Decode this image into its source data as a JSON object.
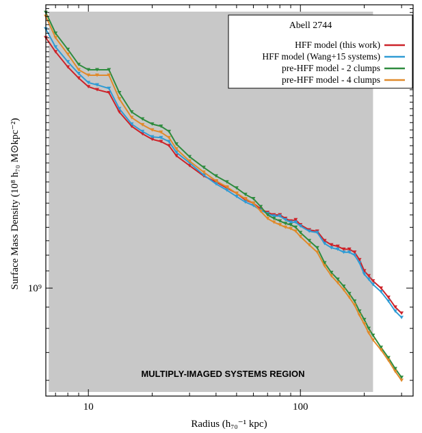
{
  "chart_data": {
    "type": "line",
    "title": "",
    "xlabel": "Radius (h₇₀⁻¹ kpc)",
    "ylabel": "Surface Mass Density (10⁸ h₇₀ M⊙kpc⁻²)",
    "xscale": "log",
    "yscale": "log",
    "xlim": [
      6.3,
      340
    ],
    "ylim": [
      0.55,
      4.8
    ],
    "x_tick_labels": [
      {
        "value": 10,
        "label": "10"
      },
      {
        "value": 100,
        "label": "100"
      }
    ],
    "y_tick_labels": [
      {
        "value": 1.0,
        "label": "10⁹"
      }
    ],
    "legend": {
      "title": "Abell 2744",
      "placement": "top-right"
    },
    "shaded_region": {
      "label": "MULTIPLY-IMAGED SYSTEMS REGION",
      "x_range": [
        6.5,
        220
      ],
      "color": "#c8c8c8"
    },
    "series": [
      {
        "name": "HFF model (this work)",
        "color": "#cc2229",
        "x": [
          6.3,
          7,
          8,
          9,
          10,
          11,
          12.5,
          14,
          16,
          18,
          20,
          22,
          24,
          26,
          30,
          35,
          40,
          45,
          50,
          55,
          60,
          65,
          70,
          75,
          80,
          85,
          90,
          95,
          100,
          110,
          120,
          130,
          140,
          150,
          160,
          170,
          180,
          190,
          200,
          210,
          220,
          240,
          260,
          280,
          300
        ],
        "y": [
          4.0,
          3.7,
          3.4,
          3.2,
          3.05,
          3.0,
          2.95,
          2.65,
          2.45,
          2.35,
          2.28,
          2.25,
          2.2,
          2.08,
          1.97,
          1.86,
          1.8,
          1.74,
          1.69,
          1.63,
          1.6,
          1.55,
          1.52,
          1.5,
          1.5,
          1.47,
          1.45,
          1.46,
          1.42,
          1.38,
          1.37,
          1.3,
          1.27,
          1.26,
          1.24,
          1.24,
          1.22,
          1.17,
          1.1,
          1.07,
          1.04,
          1.0,
          0.95,
          0.9,
          0.87
        ]
      },
      {
        "name": "HFF model (Wang+15 systems)",
        "color": "#2f9bd4",
        "x": [
          6.3,
          7,
          8,
          9,
          10,
          11,
          12.5,
          14,
          16,
          18,
          20,
          22,
          24,
          26,
          30,
          35,
          40,
          45,
          50,
          55,
          60,
          65,
          70,
          75,
          80,
          85,
          90,
          95,
          100,
          110,
          120,
          130,
          140,
          150,
          160,
          170,
          180,
          190,
          200,
          210,
          220,
          240,
          260,
          280,
          300
        ],
        "y": [
          4.2,
          3.8,
          3.5,
          3.28,
          3.12,
          3.08,
          3.02,
          2.7,
          2.48,
          2.38,
          2.31,
          2.3,
          2.25,
          2.12,
          2.0,
          1.87,
          1.78,
          1.72,
          1.66,
          1.61,
          1.58,
          1.54,
          1.51,
          1.49,
          1.49,
          1.46,
          1.44,
          1.44,
          1.41,
          1.37,
          1.36,
          1.28,
          1.25,
          1.24,
          1.22,
          1.22,
          1.2,
          1.15,
          1.08,
          1.05,
          1.02,
          0.98,
          0.93,
          0.88,
          0.85
        ]
      },
      {
        "name": "pre-HFF model - 2 clumps",
        "color": "#2e8b3e",
        "x": [
          6.3,
          7,
          8,
          9,
          10,
          11,
          12.5,
          14,
          16,
          18,
          20,
          22,
          24,
          26,
          30,
          35,
          40,
          45,
          50,
          55,
          60,
          65,
          70,
          75,
          80,
          85,
          90,
          95,
          100,
          110,
          120,
          130,
          140,
          150,
          160,
          170,
          180,
          190,
          200,
          210,
          220,
          240,
          260,
          280,
          300
        ],
        "y": [
          4.6,
          4.1,
          3.75,
          3.45,
          3.35,
          3.35,
          3.35,
          2.95,
          2.65,
          2.55,
          2.48,
          2.45,
          2.38,
          2.22,
          2.07,
          1.95,
          1.86,
          1.8,
          1.74,
          1.68,
          1.64,
          1.57,
          1.5,
          1.47,
          1.45,
          1.43,
          1.42,
          1.4,
          1.36,
          1.3,
          1.25,
          1.15,
          1.09,
          1.05,
          1.01,
          0.97,
          0.93,
          0.88,
          0.84,
          0.8,
          0.77,
          0.72,
          0.68,
          0.64,
          0.61
        ]
      },
      {
        "name": "pre-HFF model - 4 clumps",
        "color": "#e08a2a",
        "x": [
          6.3,
          7,
          8,
          9,
          10,
          11,
          12.5,
          14,
          16,
          18,
          20,
          22,
          24,
          26,
          30,
          35,
          40,
          45,
          50,
          55,
          60,
          65,
          70,
          75,
          80,
          85,
          90,
          95,
          100,
          110,
          120,
          130,
          140,
          150,
          160,
          170,
          180,
          190,
          200,
          210,
          220,
          240,
          260,
          280,
          300
        ],
        "y": [
          4.5,
          4.0,
          3.65,
          3.35,
          3.25,
          3.25,
          3.25,
          2.85,
          2.57,
          2.47,
          2.4,
          2.37,
          2.3,
          2.16,
          2.02,
          1.9,
          1.81,
          1.75,
          1.69,
          1.64,
          1.6,
          1.53,
          1.47,
          1.44,
          1.42,
          1.4,
          1.39,
          1.37,
          1.33,
          1.27,
          1.22,
          1.13,
          1.07,
          1.03,
          0.99,
          0.95,
          0.91,
          0.86,
          0.82,
          0.78,
          0.75,
          0.71,
          0.67,
          0.63,
          0.6
        ]
      }
    ]
  }
}
